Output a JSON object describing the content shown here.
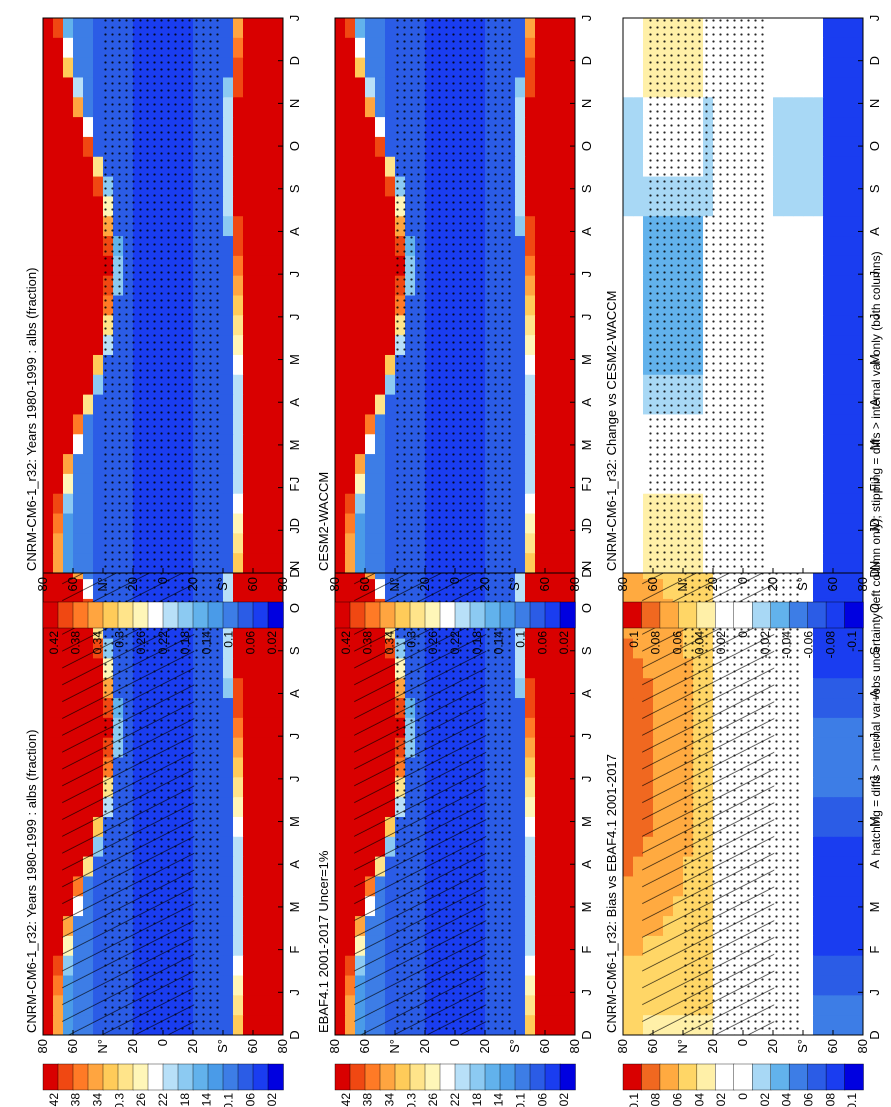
{
  "footnote": "hatching = diffs > internal var+obs uncertainty (left column only); stippling = diffs > internal var only (both columns)",
  "colors": {
    "albedo_scale": [
      "#0000e0",
      "#1a3df0",
      "#2b5ce6",
      "#3d7de6",
      "#4a9be8",
      "#62b2ec",
      "#8ccaf2",
      "#b8e0f8",
      "#ffffff",
      "#fff6b8",
      "#ffe48a",
      "#ffcb59",
      "#ffa540",
      "#ff7a26",
      "#f04812",
      "#d90000"
    ],
    "diff_scale": [
      "#0000e0",
      "#1a3df0",
      "#2b5ce6",
      "#3d7de6",
      "#62b2ec",
      "#a8d8f5",
      "#ffffff",
      "#ffffff",
      "#fff0a8",
      "#ffd666",
      "#ffaa40",
      "#f06820",
      "#d90000"
    ]
  },
  "chart_data": [
    {
      "type": "heatmap",
      "title": "CNRM-CM6-1_r32: Years 1980-1999 : albs (fraction)",
      "x": [
        "D",
        "J",
        "F",
        "M",
        "A",
        "M",
        "J",
        "J",
        "A",
        "S",
        "O",
        "N",
        "D",
        "J"
      ],
      "y": [
        "80",
        "60",
        "N°",
        "20",
        "0",
        "20",
        "S°",
        "60",
        "80"
      ],
      "colorbar": [
        "0.42",
        "0.38",
        "0.34",
        "0.3",
        "0.26",
        "0.22",
        "0.18",
        "0.14",
        "0.1",
        "0.06",
        "0.02"
      ],
      "overlay": "hatching+stippling"
    },
    {
      "type": "heatmap",
      "title": "CNRM-CM6-1_r32: Years 1980-1999 : albs (fraction)",
      "x": [
        "D",
        "J",
        "F",
        "M",
        "A",
        "M",
        "J",
        "J",
        "A",
        "S",
        "O",
        "N",
        "D",
        "J"
      ],
      "y": [
        "80",
        "60",
        "N°",
        "20",
        "0",
        "20",
        "S°",
        "60",
        "80"
      ],
      "colorbar": [
        "0.42",
        "0.38",
        "0.34",
        "0.3",
        "0.26",
        "0.22",
        "0.18",
        "0.14",
        "0.1",
        "0.06",
        "0.02"
      ],
      "overlay": "stippling"
    },
    {
      "type": "heatmap",
      "title": "EBAF4.1 2001-2017 Uncer=1%",
      "x": [
        "D",
        "J",
        "F",
        "M",
        "A",
        "M",
        "J",
        "J",
        "A",
        "S",
        "O",
        "N",
        "D",
        "J"
      ],
      "y": [
        "80",
        "60",
        "N°",
        "20",
        "0",
        "20",
        "S°",
        "60",
        "80"
      ],
      "colorbar": [
        "0.42",
        "0.38",
        "0.34",
        "0.3",
        "0.26",
        "0.22",
        "0.18",
        "0.14",
        "0.1",
        "0.06",
        "0.02"
      ],
      "overlay": "hatching+stippling"
    },
    {
      "type": "heatmap",
      "title": "CESM2-WACCM",
      "x": [
        "D",
        "J",
        "F",
        "M",
        "A",
        "M",
        "J",
        "J",
        "A",
        "S",
        "O",
        "N",
        "D",
        "J"
      ],
      "y": [
        "80",
        "60",
        "N°",
        "20",
        "0",
        "20",
        "S°",
        "60",
        "80"
      ],
      "colorbar": [
        "0.42",
        "0.38",
        "0.34",
        "0.3",
        "0.26",
        "0.22",
        "0.18",
        "0.14",
        "0.1",
        "0.06",
        "0.02"
      ],
      "overlay": "stippling"
    },
    {
      "type": "heatmap",
      "title": "CNRM-CM6-1_r32: Bias vs EBAF4.1 2001-2017",
      "x": [
        "D",
        "J",
        "F",
        "M",
        "A",
        "M",
        "J",
        "J",
        "A",
        "S",
        "O",
        "N",
        "D",
        "J"
      ],
      "y": [
        "80",
        "60",
        "N°",
        "20",
        "0",
        "20",
        "S°",
        "60",
        "80"
      ],
      "colorbar": [
        "0.1",
        "0.08",
        "0.06",
        "0.04",
        "0.02",
        "0",
        "-0.02",
        "-0.04",
        "-0.06",
        "-0.08",
        "-0.1"
      ],
      "overlay": "hatching+stippling"
    },
    {
      "type": "heatmap",
      "title": "CNRM-CM6-1_r32: Change vs CESM2-WACCM",
      "x": [
        "D",
        "J",
        "F",
        "M",
        "A",
        "M",
        "J",
        "J",
        "A",
        "S",
        "O",
        "N",
        "D",
        "J"
      ],
      "y": [
        "80",
        "60",
        "N°",
        "20",
        "0",
        "20",
        "S°",
        "60",
        "80"
      ],
      "colorbar": [
        "0.1",
        "0.08",
        "0.06",
        "0.04",
        "0.02",
        "0",
        "-0.02",
        "-0.04",
        "-0.06",
        "-0.08",
        "-0.1"
      ],
      "overlay": "stippling"
    }
  ]
}
